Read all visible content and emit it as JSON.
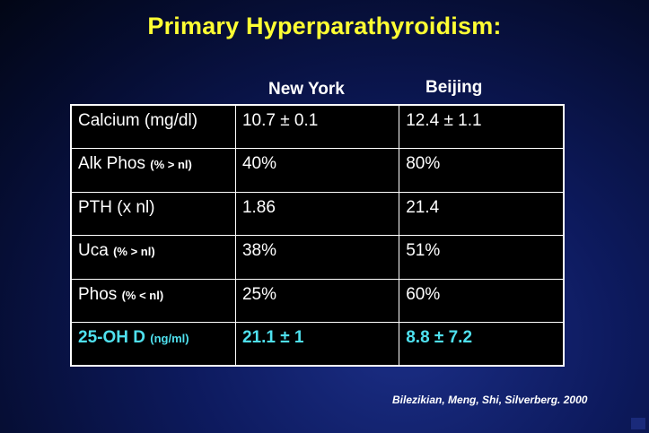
{
  "slide": {
    "title": "Primary Hyperparathyroidism:",
    "citation": "Bilezikian, Meng, Shi, Silverberg. 2000"
  },
  "table": {
    "columns": [
      "New York",
      "Beijing"
    ],
    "rows": [
      {
        "label": "Calcium (mg/dl)",
        "unit": "",
        "new_york": "10.7 ± 0.1",
        "beijing": "12.4 ± 1.1"
      },
      {
        "label": "Alk Phos ",
        "unit": "(% > nl)",
        "new_york": "40%",
        "beijing": "80%"
      },
      {
        "label": "PTH (x nl)",
        "unit": "",
        "new_york": "1.86",
        "beijing": "21.4"
      },
      {
        "label": "Uca ",
        "unit": "(% > nl)",
        "new_york": "38%",
        "beijing": "51%"
      },
      {
        "label": "Phos ",
        "unit": "(% < nl)",
        "new_york": "25%",
        "beijing": "60%"
      },
      {
        "label": "25-OH D ",
        "unit": "(ng/ml)",
        "new_york": "21.1 ± 1",
        "beijing": "8.8 ± 7.2"
      }
    ]
  },
  "colors": {
    "title": "#ffff33",
    "highlight_row": "#4fe0ee",
    "table_background": "#000000",
    "slide_background": "#0d1a5e"
  }
}
